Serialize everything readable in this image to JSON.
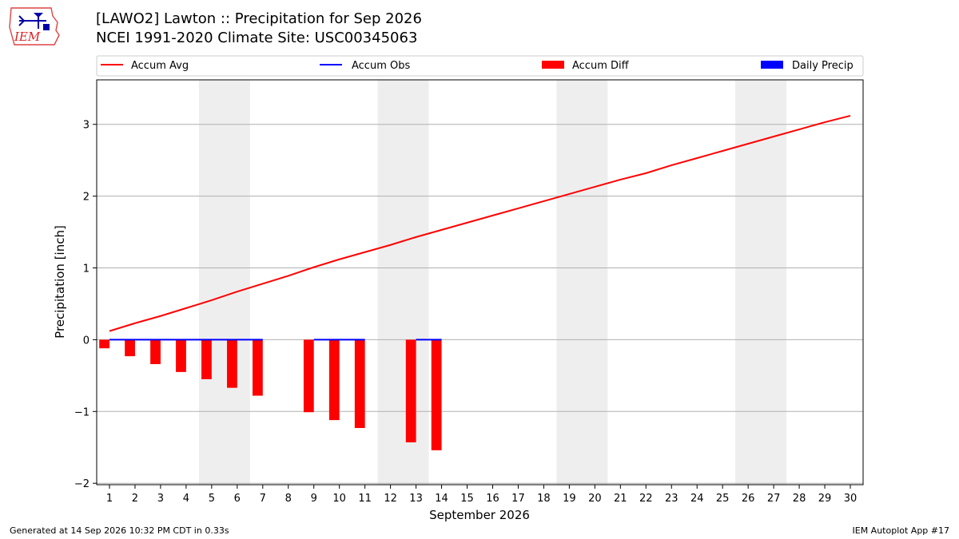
{
  "header": {
    "title_line1": "[LAWO2] Lawton :: Precipitation for Sep 2026",
    "title_line2": "NCEI 1991-2020 Climate Site: USC00345063",
    "logo_text": "IEM"
  },
  "footer": {
    "generated": "Generated at 14 Sep 2026 10:32 PM CDT in 0.33s",
    "app": "IEM Autoplot App #17"
  },
  "colors": {
    "accum_avg": "#ff0000",
    "accum_obs": "#0000ff",
    "accum_diff": "#ff0000",
    "daily_precip": "#0000ff",
    "weekend_band": "#eeeeee",
    "grid": "#b0b0b0"
  },
  "chart_data": {
    "type": "bar",
    "xlabel": "September 2026",
    "ylabel": "Precipitation [inch]",
    "xlim": [
      0.5,
      30.5
    ],
    "ylim": [
      -2.02,
      3.62
    ],
    "grid": "horizontal",
    "legend_placement": "top",
    "x": [
      1,
      2,
      3,
      4,
      5,
      6,
      7,
      8,
      9,
      10,
      11,
      12,
      13,
      14,
      15,
      16,
      17,
      18,
      19,
      20,
      21,
      22,
      23,
      24,
      25,
      26,
      27,
      28,
      29,
      30
    ],
    "x_ticks": [
      1,
      2,
      3,
      4,
      5,
      6,
      7,
      8,
      9,
      10,
      11,
      12,
      13,
      14,
      15,
      16,
      17,
      18,
      19,
      20,
      21,
      22,
      23,
      24,
      25,
      26,
      27,
      28,
      29,
      30
    ],
    "y_ticks": [
      -2,
      -1,
      0,
      1,
      2,
      3
    ],
    "y_tick_labels": [
      "−2",
      "−1",
      "0",
      "1",
      "2",
      "3"
    ],
    "weekend_bands": [
      [
        4.5,
        6.5
      ],
      [
        11.5,
        13.5
      ],
      [
        18.5,
        20.5
      ],
      [
        25.5,
        27.5
      ]
    ],
    "legend": [
      "Accum Avg",
      "Accum Obs",
      "Accum Diff",
      "Daily Precip"
    ],
    "series": [
      {
        "name": "Accum Avg",
        "kind": "line",
        "x": [
          1,
          2,
          3,
          4,
          5,
          6,
          7,
          8,
          9,
          10,
          11,
          12,
          13,
          14,
          15,
          16,
          17,
          18,
          19,
          20,
          21,
          22,
          23,
          24,
          25,
          26,
          27,
          28,
          29,
          30
        ],
        "values": [
          0.12,
          0.23,
          0.33,
          0.44,
          0.55,
          0.67,
          0.78,
          0.89,
          1.01,
          1.12,
          1.22,
          1.32,
          1.43,
          1.53,
          1.63,
          1.73,
          1.83,
          1.93,
          2.03,
          2.13,
          2.23,
          2.32,
          2.43,
          2.53,
          2.63,
          2.73,
          2.83,
          2.93,
          3.03,
          3.12
        ]
      },
      {
        "name": "Accum Obs",
        "kind": "line",
        "segments": [
          {
            "x": [
              1,
              2,
              3,
              4,
              5,
              6,
              7
            ],
            "values": [
              0,
              0,
              0,
              0,
              0,
              0,
              0
            ]
          },
          {
            "x": [
              9,
              10,
              11
            ],
            "values": [
              0,
              0,
              0
            ]
          },
          {
            "x": [
              13,
              14
            ],
            "values": [
              0,
              0
            ]
          }
        ]
      },
      {
        "name": "Accum Diff",
        "kind": "bar",
        "x": [
          1,
          2,
          3,
          4,
          5,
          6,
          7,
          9,
          10,
          11,
          13,
          14
        ],
        "values": [
          -0.12,
          -0.23,
          -0.34,
          -0.45,
          -0.55,
          -0.67,
          -0.78,
          -1.01,
          -1.12,
          -1.23,
          -1.43,
          -1.54
        ]
      },
      {
        "name": "Daily Precip",
        "kind": "bar",
        "x": [
          1,
          2,
          3,
          4,
          5,
          6,
          7,
          9,
          10,
          11,
          13,
          14
        ],
        "values": [
          0,
          0,
          0,
          0,
          0,
          0,
          0,
          0,
          0,
          0,
          0,
          0
        ]
      }
    ]
  }
}
